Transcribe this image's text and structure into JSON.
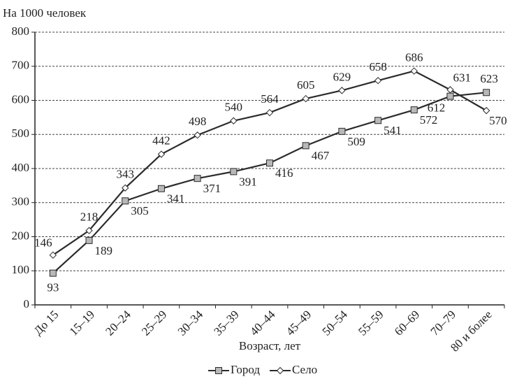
{
  "chart_data": {
    "type": "line",
    "y_label": "На 1000 человек",
    "x_label": "Возраст, лет",
    "categories": [
      "До 15",
      "15–19",
      "20–24",
      "25–29",
      "30–34",
      "35–39",
      "40–44",
      "45–49",
      "50–54",
      "55–59",
      "60–69",
      "70–79",
      "80 и более"
    ],
    "series": [
      {
        "name": "Город",
        "color": "#2b2b2b",
        "marker": "square",
        "values": [
          93,
          189,
          305,
          341,
          371,
          391,
          416,
          467,
          509,
          541,
          572,
          612,
          623
        ]
      },
      {
        "name": "Село",
        "color": "#2b2b2b",
        "marker": "diamond",
        "values": [
          146,
          218,
          343,
          442,
          498,
          540,
          564,
          605,
          629,
          658,
          686,
          631,
          570
        ]
      }
    ],
    "ylim": [
      0,
      800
    ],
    "yticks": [
      0,
      100,
      200,
      300,
      400,
      500,
      600,
      700,
      800
    ],
    "grid": true,
    "legend": "bottom"
  }
}
